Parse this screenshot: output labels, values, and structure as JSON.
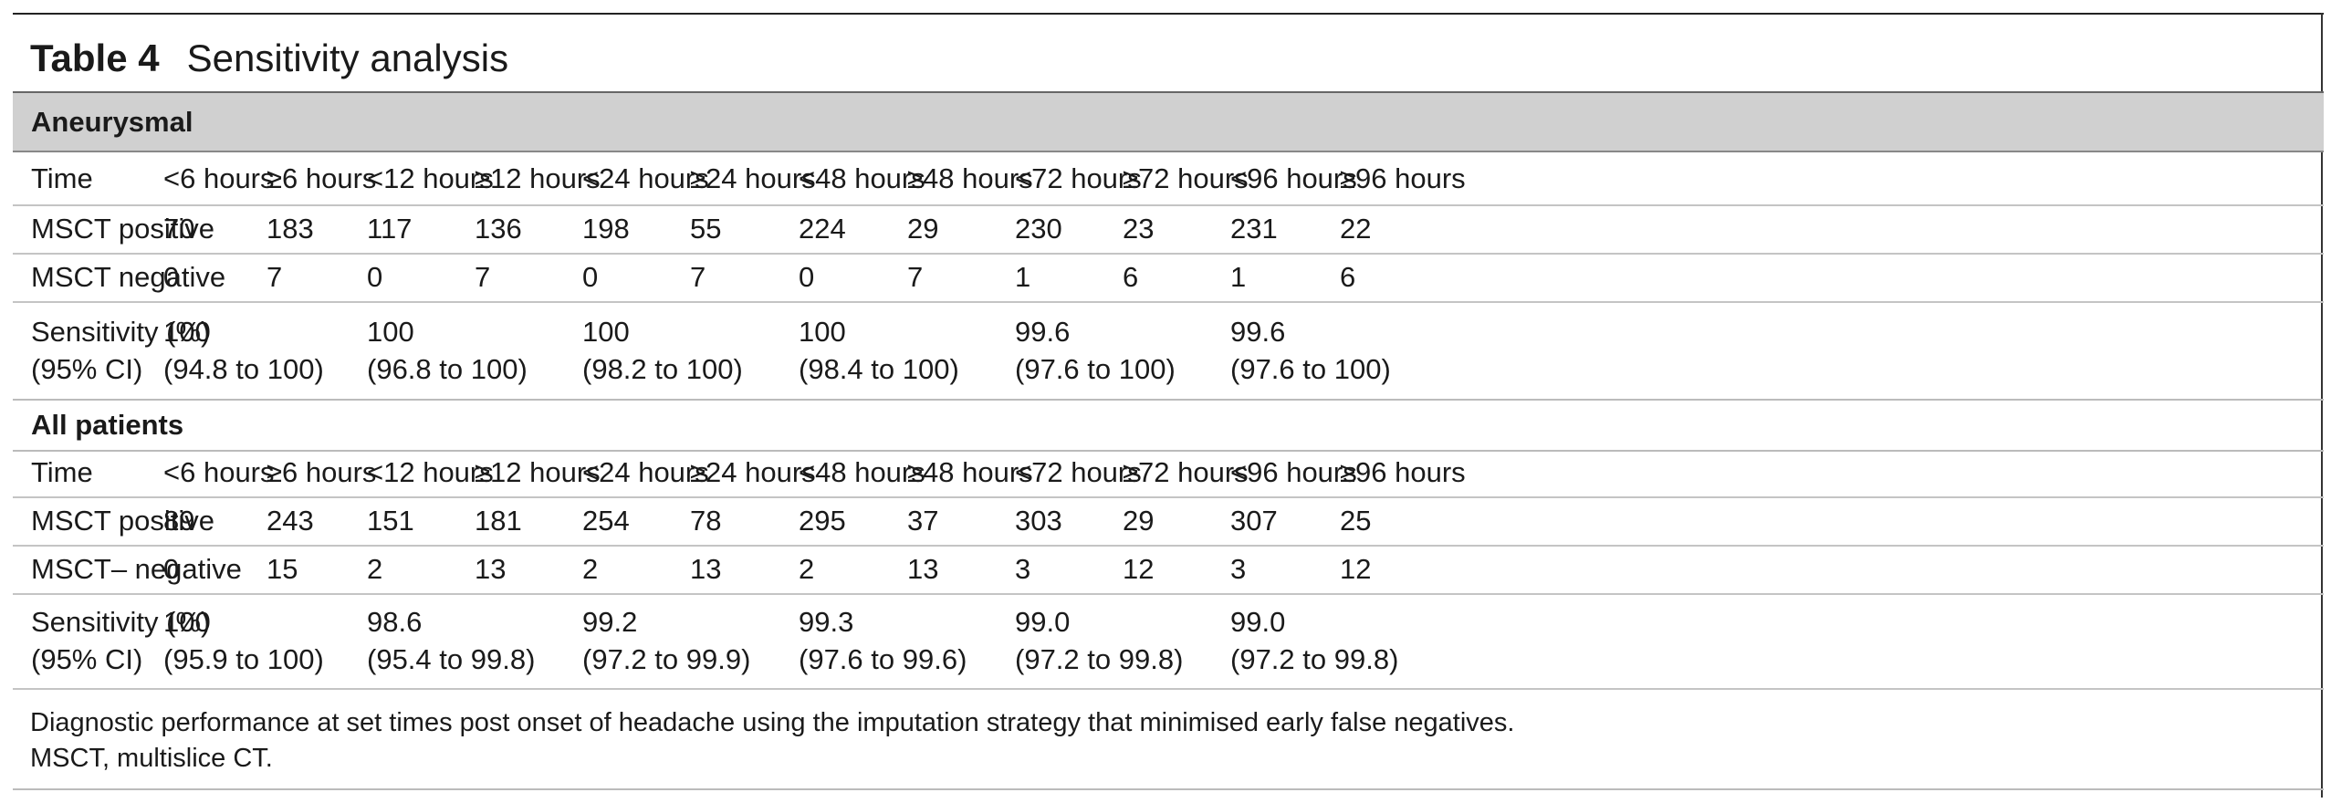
{
  "table": {
    "number": "Table 4",
    "caption": "Sensitivity analysis",
    "sections": [
      {
        "heading": "Aneurysmal",
        "time_row": {
          "label": "Time",
          "cells": [
            "<6 hours",
            "≥6 hours",
            "<12 hours",
            "≥12 hours",
            "<24 hours",
            "≥24 hours",
            "<48 hours",
            "≥48 hours",
            "<72 hours",
            "≥72 hours",
            "<96 hours",
            "≥96 hours"
          ]
        },
        "positive_row": {
          "label": "MSCT positive",
          "cells": [
            "70",
            "183",
            "117",
            "136",
            "198",
            "55",
            "224",
            "29",
            "230",
            "23",
            "231",
            "22"
          ]
        },
        "negative_row": {
          "label": "MSCT negative",
          "cells": [
            "0",
            "7",
            "0",
            "7",
            "0",
            "7",
            "0",
            "7",
            "1",
            "6",
            "1",
            "6"
          ]
        },
        "sensitivity_row": {
          "label_line1": "Sensitivity (%)",
          "label_line2": "(95% CI)",
          "values": [
            {
              "value": "100",
              "ci": "(94.8 to 100)"
            },
            {
              "value": "100",
              "ci": "(96.8 to 100)"
            },
            {
              "value": "100",
              "ci": "(98.2 to 100)"
            },
            {
              "value": "100",
              "ci": "(98.4 to 100)"
            },
            {
              "value": "99.6",
              "ci": "(97.6 to 100)"
            },
            {
              "value": "99.6",
              "ci": "(97.6 to 100)"
            }
          ]
        }
      },
      {
        "heading": "All patients",
        "time_row": {
          "label": "Time",
          "cells": [
            "<6 hours",
            "≥6 hours",
            "<12 hours",
            "≥12 hours",
            "<24 hours",
            "≥24 hours",
            "<48 hours",
            "≥48 hours",
            "<72 hours",
            "≥72 hours",
            "<96 hours",
            "≥96 hours"
          ]
        },
        "positive_row": {
          "label": "MSCT positive",
          "cells": [
            "89",
            "243",
            "151",
            "181",
            "254",
            "78",
            "295",
            "37",
            "303",
            "29",
            "307",
            "25"
          ]
        },
        "negative_row": {
          "label": "MSCT– negative",
          "cells": [
            "0",
            "15",
            "2",
            "13",
            "2",
            "13",
            "2",
            "13",
            "3",
            "12",
            "3",
            "12"
          ]
        },
        "sensitivity_row": {
          "label_line1": "Sensitivity (%)",
          "label_line2": "(95% CI)",
          "values": [
            {
              "value": "100",
              "ci": "(95.9 to 100)"
            },
            {
              "value": "98.6",
              "ci": "(95.4 to 99.8)"
            },
            {
              "value": "99.2",
              "ci": "(97.2 to 99.9)"
            },
            {
              "value": "99.3",
              "ci": "(97.6 to 99.6)"
            },
            {
              "value": "99.0",
              "ci": "(97.2 to 99.8)"
            },
            {
              "value": "99.0",
              "ci": "(97.2 to 99.8)"
            }
          ]
        }
      }
    ],
    "footnotes": [
      "Diagnostic performance at set times post onset of headache using the imputation strategy that minimised early false negatives.",
      "MSCT, multislice CT."
    ]
  }
}
